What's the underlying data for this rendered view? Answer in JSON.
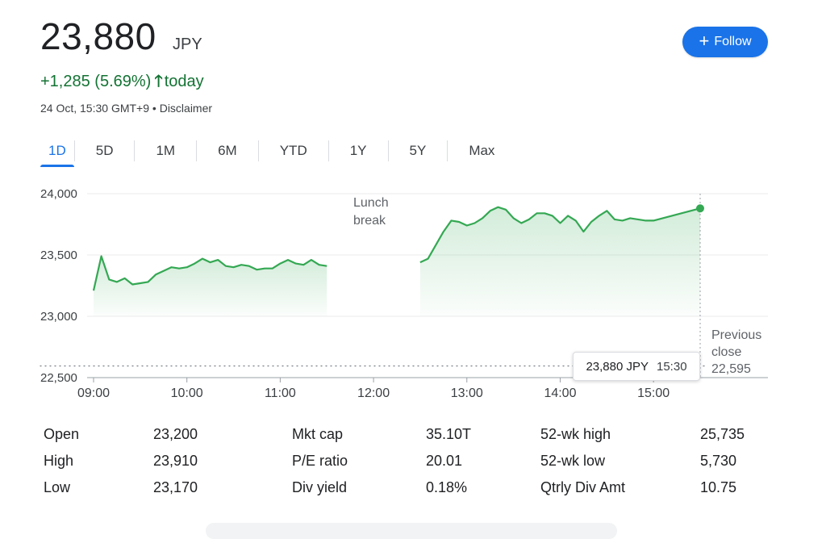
{
  "header": {
    "price": "23,880",
    "currency": "JPY",
    "change": "+1,285 (5.69%)",
    "change_suffix": "today",
    "timestamp": "24 Oct, 15:30 GMT+9",
    "separator": "•",
    "disclaimer": "Disclaimer",
    "follow_label": "Follow",
    "positive_color": "#137333",
    "accent_color": "#1a73e8"
  },
  "tabs": [
    {
      "label": "1D",
      "active": true
    },
    {
      "label": "5D",
      "active": false
    },
    {
      "label": "1M",
      "active": false
    },
    {
      "label": "6M",
      "active": false
    },
    {
      "label": "YTD",
      "active": false
    },
    {
      "label": "1Y",
      "active": false
    },
    {
      "label": "5Y",
      "active": false
    },
    {
      "label": "Max",
      "active": false
    }
  ],
  "tooltip": {
    "value": "23,880 JPY",
    "time": "15:30"
  },
  "chart_data": {
    "type": "area",
    "line_color": "#34a853",
    "fill_color": "#e6f4ea",
    "ylim": [
      22500,
      24000
    ],
    "yticks": [
      {
        "value": 24000,
        "label": "24,000"
      },
      {
        "value": 23500,
        "label": "23,500"
      },
      {
        "value": 23000,
        "label": "23,000"
      },
      {
        "value": 22500,
        "label": "22,500"
      }
    ],
    "xlim": [
      "09:00",
      "15:30"
    ],
    "xticks": [
      "09:00",
      "10:00",
      "11:00",
      "12:00",
      "13:00",
      "14:00",
      "15:00"
    ],
    "previous_close": {
      "value": 22595,
      "label_line1": "Previous",
      "label_line2": "close",
      "label_value": "22,595"
    },
    "lunch_break_label": [
      "Lunch",
      "break"
    ],
    "series": [
      {
        "session": "morning",
        "points": [
          [
            "09:00",
            23210
          ],
          [
            "09:05",
            23490
          ],
          [
            "09:10",
            23300
          ],
          [
            "09:15",
            23280
          ],
          [
            "09:20",
            23310
          ],
          [
            "09:25",
            23260
          ],
          [
            "09:30",
            23270
          ],
          [
            "09:35",
            23280
          ],
          [
            "09:40",
            23340
          ],
          [
            "09:45",
            23370
          ],
          [
            "09:50",
            23400
          ],
          [
            "09:55",
            23390
          ],
          [
            "10:00",
            23400
          ],
          [
            "10:05",
            23430
          ],
          [
            "10:10",
            23470
          ],
          [
            "10:15",
            23440
          ],
          [
            "10:20",
            23460
          ],
          [
            "10:25",
            23410
          ],
          [
            "10:30",
            23400
          ],
          [
            "10:35",
            23420
          ],
          [
            "10:40",
            23410
          ],
          [
            "10:45",
            23380
          ],
          [
            "10:50",
            23390
          ],
          [
            "10:55",
            23390
          ],
          [
            "11:00",
            23430
          ],
          [
            "11:05",
            23460
          ],
          [
            "11:10",
            23430
          ],
          [
            "11:15",
            23420
          ],
          [
            "11:20",
            23460
          ],
          [
            "11:25",
            23420
          ],
          [
            "11:30",
            23410
          ]
        ]
      },
      {
        "session": "afternoon",
        "points": [
          [
            "12:30",
            23440
          ],
          [
            "12:35",
            23470
          ],
          [
            "12:40",
            23580
          ],
          [
            "12:45",
            23690
          ],
          [
            "12:50",
            23780
          ],
          [
            "12:55",
            23770
          ],
          [
            "13:00",
            23740
          ],
          [
            "13:05",
            23760
          ],
          [
            "13:10",
            23800
          ],
          [
            "13:15",
            23860
          ],
          [
            "13:20",
            23890
          ],
          [
            "13:25",
            23870
          ],
          [
            "13:30",
            23800
          ],
          [
            "13:35",
            23760
          ],
          [
            "13:40",
            23790
          ],
          [
            "13:45",
            23840
          ],
          [
            "13:50",
            23840
          ],
          [
            "13:55",
            23820
          ],
          [
            "14:00",
            23760
          ],
          [
            "14:05",
            23820
          ],
          [
            "14:10",
            23780
          ],
          [
            "14:15",
            23690
          ],
          [
            "14:20",
            23770
          ],
          [
            "14:25",
            23820
          ],
          [
            "14:30",
            23860
          ],
          [
            "14:35",
            23790
          ],
          [
            "14:40",
            23780
          ],
          [
            "14:45",
            23800
          ],
          [
            "14:50",
            23790
          ],
          [
            "14:55",
            23780
          ],
          [
            "15:00",
            23780
          ],
          [
            "15:30",
            23880
          ]
        ]
      }
    ],
    "last_point": [
      "15:30",
      23880
    ]
  },
  "stats": [
    {
      "label": "Open",
      "value": "23,200"
    },
    {
      "label": "High",
      "value": "23,910"
    },
    {
      "label": "Low",
      "value": "23,170"
    },
    {
      "label": "Mkt cap",
      "value": "35.10T"
    },
    {
      "label": "P/E ratio",
      "value": "20.01"
    },
    {
      "label": "Div yield",
      "value": "0.18%"
    },
    {
      "label": "52-wk high",
      "value": "25,735"
    },
    {
      "label": "52-wk low",
      "value": "5,730"
    },
    {
      "label": "Qtrly Div Amt",
      "value": "10.75"
    }
  ]
}
